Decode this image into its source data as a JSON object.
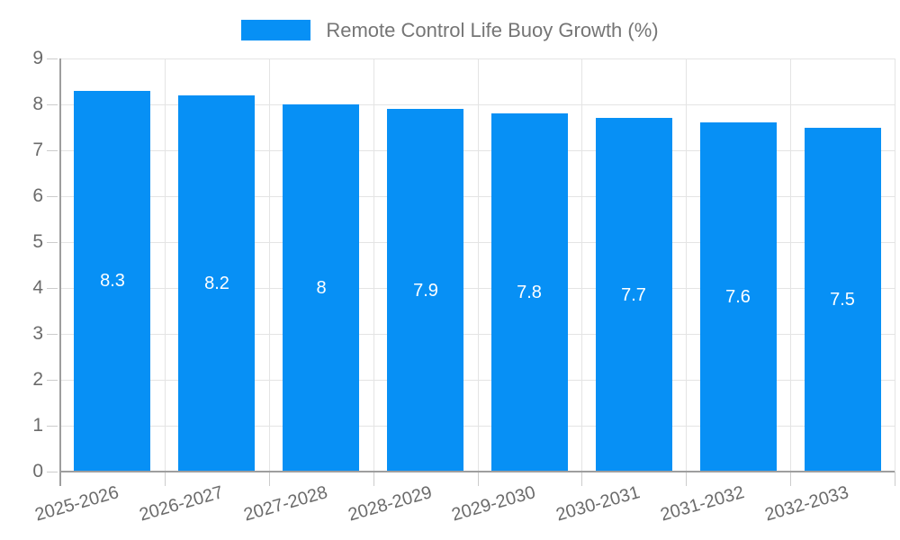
{
  "chart_data": {
    "type": "bar",
    "title": "Remote Control Life Buoy Growth (%)",
    "categories": [
      "2025-2026",
      "2026-2027",
      "2027-2028",
      "2028-2029",
      "2029-2030",
      "2030-2031",
      "2031-2032",
      "2032-2033"
    ],
    "series": [
      {
        "name": "Remote Control Life Buoy Growth (%)",
        "values": [
          8.3,
          8.2,
          8,
          7.9,
          7.8,
          7.7,
          7.6,
          7.5
        ]
      }
    ],
    "bar_labels": [
      "8.3",
      "8.2",
      "8",
      "7.9",
      "7.8",
      "7.7",
      "7.6",
      "7.5"
    ],
    "ylim": [
      0,
      9
    ],
    "yticks": [
      0,
      1,
      2,
      3,
      4,
      5,
      6,
      7,
      8,
      9
    ],
    "grid": true,
    "legend_position": "top-center",
    "x_label_rotation_deg": -16,
    "colors": {
      "bar": "#0790f5",
      "grid": "#e4e4e4",
      "axis": "#9e9e9e",
      "tick": "#cccccc",
      "axis_text": "#6b6b6b",
      "legend_text": "#757575",
      "bar_label_text": "#ffffff",
      "background": "#ffffff"
    }
  }
}
